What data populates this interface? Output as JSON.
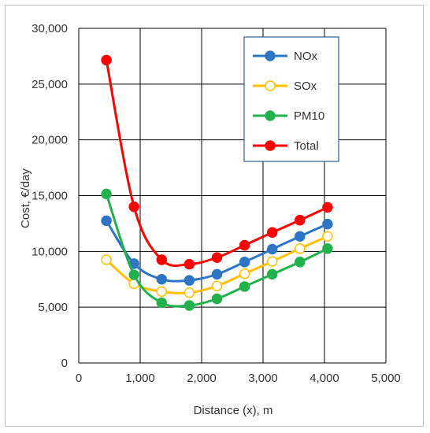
{
  "chart_data": {
    "type": "line",
    "xlabel": "Distance (x), m",
    "ylabel": "Cost, €/day",
    "xlim": [
      0,
      5000
    ],
    "ylim": [
      0,
      30000
    ],
    "x_ticks": [
      "0",
      "1,000",
      "2,000",
      "3,000",
      "4,000",
      "5,000"
    ],
    "y_ticks": [
      "0",
      "5,000",
      "10,000",
      "15,000",
      "20,000",
      "25,000",
      "30,000"
    ],
    "grid": true,
    "legend_position": "top-right",
    "x": [
      450,
      900,
      1350,
      1800,
      2250,
      2700,
      3150,
      3600,
      4050
    ],
    "series": [
      {
        "name": "NOx",
        "color": "#2e75c6",
        "marker": "filled",
        "values": [
          12750,
          8900,
          7500,
          7400,
          7950,
          9050,
          10200,
          11350,
          12450
        ]
      },
      {
        "name": "SOx",
        "color": "#ffc000",
        "marker": "hollow",
        "values": [
          9250,
          7100,
          6400,
          6300,
          6900,
          8000,
          9100,
          10250,
          11350
        ]
      },
      {
        "name": "PM10",
        "color": "#22b14c",
        "marker": "filled",
        "values": [
          15150,
          7900,
          5400,
          5150,
          5750,
          6850,
          7950,
          9050,
          10250
        ]
      },
      {
        "name": "Total",
        "color": "#ff0000",
        "marker": "filled",
        "values": [
          27150,
          14000,
          9250,
          8850,
          9450,
          10550,
          11700,
          12800,
          13950
        ]
      }
    ]
  }
}
